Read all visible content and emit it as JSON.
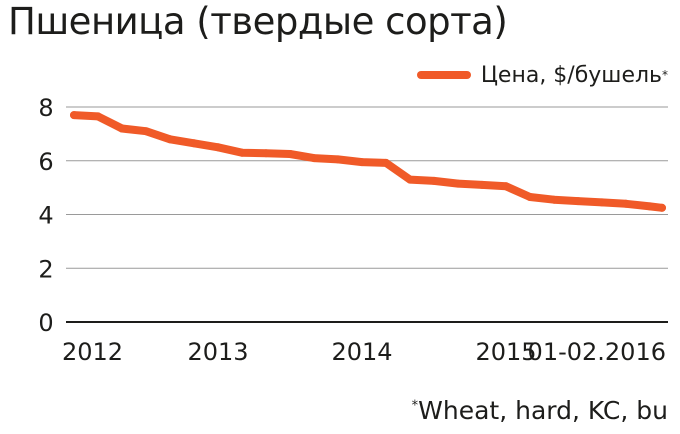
{
  "title": "Пшеница (твердые сорта)",
  "footnote": {
    "star": "*",
    "text": "Wheat, hard, KC, bu"
  },
  "chart_data": {
    "type": "line",
    "title": "Пшеница (твердые сорта)",
    "xlabel": "",
    "ylabel": "",
    "ylim": [
      0,
      8
    ],
    "yticks": [
      0,
      2,
      4,
      6,
      8
    ],
    "xlim": [
      "2012-01",
      "2016-02"
    ],
    "x_tick_labels": [
      {
        "label": "2012",
        "x": "2012-01"
      },
      {
        "label": "2013",
        "x": "2013-01"
      },
      {
        "label": "2014",
        "x": "2014-01"
      },
      {
        "label": "2015",
        "x": "2015-01"
      },
      {
        "label": "01-02.2016",
        "x": "2016-01"
      }
    ],
    "grid": true,
    "legend_position": "top-right",
    "colors": {
      "line": "#f05a28",
      "grid": "#9a9a9a",
      "axis": "#1d1d1b"
    },
    "series": [
      {
        "name": "Цена, $/бушель",
        "name_star": "*",
        "x": [
          "2012-01",
          "2012-03",
          "2012-05",
          "2012-07",
          "2012-09",
          "2012-11",
          "2013-01",
          "2013-03",
          "2013-05",
          "2013-07",
          "2013-09",
          "2013-11",
          "2014-01",
          "2014-03",
          "2014-05",
          "2014-07",
          "2014-09",
          "2014-11",
          "2015-01",
          "2015-03",
          "2015-05",
          "2015-07",
          "2015-09",
          "2015-11",
          "2016-01",
          "2016-02"
        ],
        "values": [
          7.7,
          7.65,
          7.2,
          7.1,
          6.8,
          6.65,
          6.5,
          6.3,
          6.28,
          6.25,
          6.1,
          6.05,
          5.95,
          5.92,
          5.3,
          5.25,
          5.15,
          5.1,
          5.05,
          4.65,
          4.55,
          4.5,
          4.45,
          4.4,
          4.3,
          4.25
        ]
      }
    ]
  }
}
